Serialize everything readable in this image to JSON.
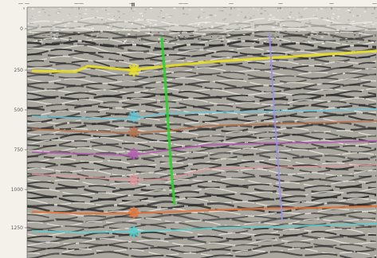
{
  "time_axis": {
    "ticks": [
      "0",
      "250",
      "500",
      "750",
      "1000",
      "1250"
    ]
  },
  "top_axis": {
    "labels": [
      "— —",
      "——",
      "—",
      "——",
      "—",
      "—",
      "—",
      "—"
    ],
    "marker_label": "II"
  },
  "horizons": [
    {
      "color": "#e9e021"
    },
    {
      "color": "#68c7d8"
    },
    {
      "color": "#b7724c"
    },
    {
      "color": "#b45db0"
    },
    {
      "color": "#e39aa0"
    },
    {
      "color": "#e2743b"
    },
    {
      "color": "#57d1d2"
    }
  ],
  "faults": [
    {
      "color": "#2cd32a"
    },
    {
      "color": "#9a92e7"
    }
  ]
}
